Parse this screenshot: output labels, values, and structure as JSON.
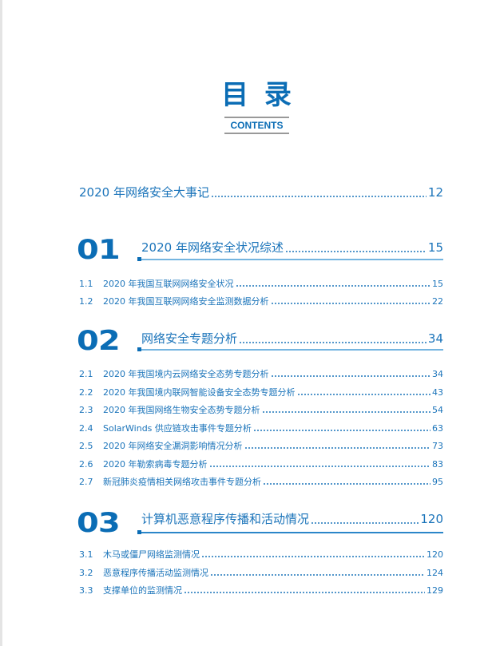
{
  "header": {
    "title": "目 录",
    "subtitle": "CONTENTS"
  },
  "intro": {
    "label": "2020 年网络安全大事记",
    "page": "12"
  },
  "sections": [
    {
      "number": "01",
      "label": "2020 年网络安全状况综述",
      "page": "15",
      "items": [
        {
          "num": "1.1",
          "label": "2020 年我国互联网网络安全状况",
          "page": "15"
        },
        {
          "num": "1.2",
          "label": "2020 年我国互联网网络安全监测数据分析",
          "page": "22"
        }
      ]
    },
    {
      "number": "02",
      "label": "网络安全专题分析",
      "page": "34",
      "items": [
        {
          "num": "2.1",
          "label": "2020 年我国境内云网络安全态势专题分析",
          "page": "34"
        },
        {
          "num": "2.2",
          "label": "2020 年我国境内联网智能设备安全态势专题分析",
          "page": "43"
        },
        {
          "num": "2.3",
          "label": "2020 年我国网络生物安全态势专题分析",
          "page": "54"
        },
        {
          "num": "2.4",
          "label": "SolarWinds 供应链攻击事件专题分析",
          "page": "63"
        },
        {
          "num": "2.5",
          "label": "2020 年网络安全漏洞影响情况分析",
          "page": "73"
        },
        {
          "num": "2.6",
          "label": "2020 年勒索病毒专题分析",
          "page": "83"
        },
        {
          "num": "2.7",
          "label": "新冠肺炎疫情相关网络攻击事件专题分析",
          "page": "95"
        }
      ]
    },
    {
      "number": "03",
      "label": "计算机恶意程序传播和活动情况",
      "page": "120",
      "items": [
        {
          "num": "3.1",
          "label": "木马或僵尸网络监测情况",
          "page": "120"
        },
        {
          "num": "3.2",
          "label": "恶意程序传播活动监测情况",
          "page": "124"
        },
        {
          "num": "3.3",
          "label": "支撑单位的监测情况",
          "page": "129"
        }
      ]
    }
  ],
  "colors": {
    "accent": "#0b6db5",
    "text": "#1b74ba",
    "rule": "#74b5e0"
  }
}
